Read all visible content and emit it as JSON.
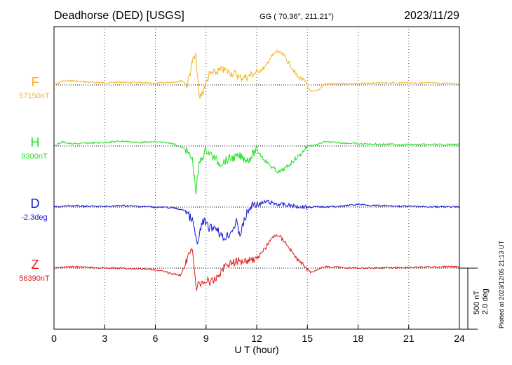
{
  "chart_data": {
    "type": "line",
    "title": "Deadhorse (DED)  [USGS]",
    "coords": "GG ( 70.36°, 211.21°)",
    "date": "2023/11/29",
    "xlabel": "U T (hour)",
    "xlim": [
      0,
      24
    ],
    "xticks": [
      "0",
      "3",
      "6",
      "9",
      "12",
      "15",
      "18",
      "21",
      "24"
    ],
    "plotted_note": "Plotted at 2023/12/05 21:13 UT",
    "scale_labels": [
      "500 nT",
      "2.0 deg"
    ],
    "series": [
      {
        "name": "F",
        "baseline": "57150nT",
        "color": "#f5b21c",
        "values": [
          [
            0,
            0
          ],
          [
            0.5,
            -5
          ],
          [
            1,
            -6
          ],
          [
            2,
            -4
          ],
          [
            3,
            -3
          ],
          [
            4,
            -4
          ],
          [
            5,
            -3
          ],
          [
            6,
            -2
          ],
          [
            7,
            -4
          ],
          [
            7.6,
            -6
          ],
          [
            7.9,
            0
          ],
          [
            8.2,
            -35
          ],
          [
            8.4,
            -40
          ],
          [
            8.6,
            20
          ],
          [
            8.8,
            10
          ],
          [
            9.2,
            -15
          ],
          [
            9.6,
            -18
          ],
          [
            10,
            -22
          ],
          [
            10.4,
            -18
          ],
          [
            10.8,
            -15
          ],
          [
            11,
            -10
          ],
          [
            11.5,
            -12
          ],
          [
            12,
            -18
          ],
          [
            12.5,
            -25
          ],
          [
            12.8,
            -38
          ],
          [
            13.2,
            -48
          ],
          [
            13.6,
            -42
          ],
          [
            14,
            -28
          ],
          [
            14.4,
            -12
          ],
          [
            14.8,
            -6
          ],
          [
            15.2,
            10
          ],
          [
            15.6,
            8
          ],
          [
            16,
            -1
          ],
          [
            18,
            -2
          ],
          [
            21,
            -3
          ],
          [
            24,
            -2
          ]
        ]
      },
      {
        "name": "H",
        "baseline": "9300nT",
        "color": "#22e022",
        "values": [
          [
            0,
            0
          ],
          [
            0.5,
            -6
          ],
          [
            1,
            -3
          ],
          [
            2,
            -4
          ],
          [
            3,
            -5
          ],
          [
            4,
            -7
          ],
          [
            5,
            -5
          ],
          [
            6,
            -6
          ],
          [
            7,
            -4
          ],
          [
            7.8,
            5
          ],
          [
            8.2,
            20
          ],
          [
            8.4,
            65
          ],
          [
            8.6,
            25
          ],
          [
            9,
            5
          ],
          [
            9.4,
            15
          ],
          [
            9.8,
            25
          ],
          [
            10.4,
            18
          ],
          [
            11,
            15
          ],
          [
            11.5,
            20
          ],
          [
            12,
            5
          ],
          [
            12.4,
            18
          ],
          [
            12.8,
            28
          ],
          [
            13.3,
            38
          ],
          [
            13.8,
            30
          ],
          [
            14.2,
            20
          ],
          [
            14.6,
            12
          ],
          [
            15,
            0
          ],
          [
            15.6,
            -2
          ],
          [
            16,
            -6
          ],
          [
            18,
            -3
          ],
          [
            21,
            -2
          ],
          [
            24,
            -2
          ]
        ]
      },
      {
        "name": "D",
        "baseline": "-2.3deg",
        "color": "#1414d4",
        "values": [
          [
            0,
            0
          ],
          [
            1,
            -2
          ],
          [
            2,
            -1
          ],
          [
            3,
            -1
          ],
          [
            4,
            -2
          ],
          [
            5,
            -1
          ],
          [
            6,
            0
          ],
          [
            7,
            1
          ],
          [
            7.8,
            5
          ],
          [
            8.2,
            20
          ],
          [
            8.5,
            55
          ],
          [
            8.8,
            18
          ],
          [
            9.2,
            30
          ],
          [
            9.6,
            28
          ],
          [
            10,
            45
          ],
          [
            10.4,
            38
          ],
          [
            10.8,
            22
          ],
          [
            11,
            40
          ],
          [
            11.4,
            10
          ],
          [
            11.8,
            -5
          ],
          [
            12.2,
            -4
          ],
          [
            12.6,
            -8
          ],
          [
            13,
            -5
          ],
          [
            14,
            -2
          ],
          [
            15,
            0
          ],
          [
            17,
            -1
          ],
          [
            18,
            -4
          ],
          [
            19,
            -2
          ],
          [
            21,
            -1
          ],
          [
            24,
            0
          ]
        ]
      },
      {
        "name": "Z",
        "baseline": "56390nT",
        "color": "#e31a1a",
        "values": [
          [
            0,
            0
          ],
          [
            1,
            -2
          ],
          [
            2,
            -1
          ],
          [
            3,
            0
          ],
          [
            4,
            0
          ],
          [
            5,
            1
          ],
          [
            6,
            2
          ],
          [
            7,
            8
          ],
          [
            7.5,
            10
          ],
          [
            7.9,
            -12
          ],
          [
            8.2,
            -32
          ],
          [
            8.4,
            30
          ],
          [
            8.6,
            22
          ],
          [
            9,
            18
          ],
          [
            9.4,
            20
          ],
          [
            9.8,
            8
          ],
          [
            10.2,
            -6
          ],
          [
            10.6,
            -8
          ],
          [
            11,
            -10
          ],
          [
            11.5,
            -12
          ],
          [
            12,
            -14
          ],
          [
            12.5,
            -28
          ],
          [
            12.8,
            -40
          ],
          [
            13.2,
            -48
          ],
          [
            13.6,
            -40
          ],
          [
            14,
            -26
          ],
          [
            14.4,
            -12
          ],
          [
            14.8,
            -4
          ],
          [
            15.2,
            6
          ],
          [
            15.6,
            2
          ],
          [
            16,
            -2
          ],
          [
            18,
            0
          ],
          [
            21,
            -1
          ],
          [
            23,
            -2
          ],
          [
            24,
            -2
          ]
        ]
      }
    ]
  }
}
